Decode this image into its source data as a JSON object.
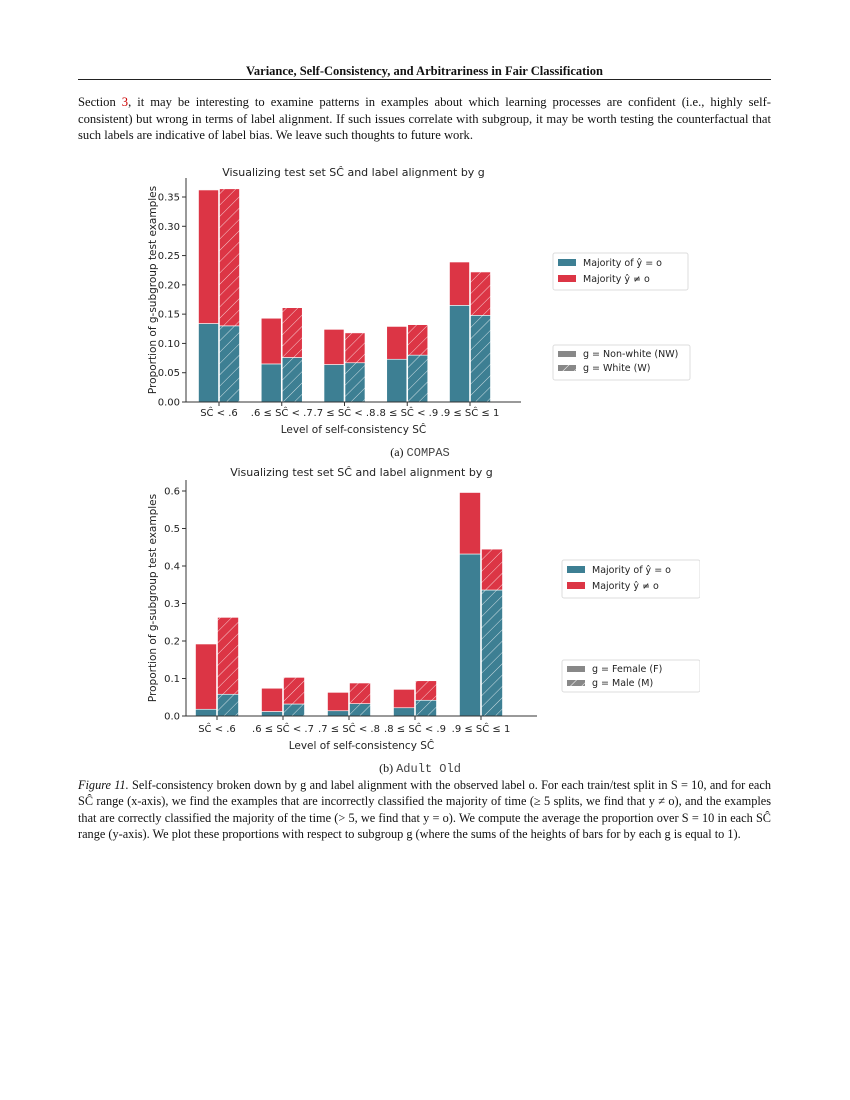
{
  "header": {
    "running_title": "Variance, Self-Consistency, and Arbitrariness in Fair Classification"
  },
  "body": {
    "pre": "Section ",
    "ref": "3",
    "post": ", it may be interesting to examine patterns in examples about which learning processes are confident (i.e., highly self-consistent) but wrong in terms of label alignment. If such issues correlate with subgroup, it may be worth testing the counterfactual that such labels are indicative of label bias. We leave such thoughts to future work."
  },
  "colors": {
    "majority_correct": "#3d7f93",
    "majority_incorrect": "#dc3545",
    "link": "#cc0000"
  },
  "chart_data": [
    {
      "type": "bar",
      "stacked": true,
      "title": "Visualizing test set SĈ and label alignment by g",
      "xlabel": "Level of self-consistency SĈ",
      "ylabel": "Proportion of g-subgroup test examples",
      "categories": [
        "SĈ < .6",
        ".6 ≤ SĈ < .7",
        ".7 ≤ SĈ < .8",
        ".8 ≤ SĈ < .9",
        ".9 ≤ SĈ ≤ 1"
      ],
      "yticks": [
        "0.00",
        "0.05",
        "0.10",
        "0.15",
        "0.20",
        "0.25",
        "0.30",
        "0.35"
      ],
      "ylim": [
        0,
        0.38
      ],
      "legend_stack": [
        "Majority of ŷ = o",
        "Majority ŷ ≠ o"
      ],
      "legend_groups": [
        "g =  Non-white (NW)",
        "g =  White (W)"
      ],
      "legend_placement": "right",
      "groups": [
        {
          "name": "Non-white (NW)",
          "hatched": false,
          "majority_correct": [
            0.134,
            0.065,
            0.064,
            0.073,
            0.165
          ],
          "majority_incorrect": [
            0.228,
            0.078,
            0.06,
            0.056,
            0.074
          ]
        },
        {
          "name": "White (W)",
          "hatched": true,
          "majority_correct": [
            0.13,
            0.076,
            0.067,
            0.08,
            0.148
          ],
          "majority_incorrect": [
            0.234,
            0.085,
            0.051,
            0.052,
            0.074
          ]
        }
      ],
      "caption_label": "(a) ",
      "caption_dataset": "COMPAS"
    },
    {
      "type": "bar",
      "stacked": true,
      "title": "Visualizing test set SĈ and label alignment by g",
      "xlabel": "Level of self-consistency SĈ",
      "ylabel": "Proportion of g-subgroup test examples",
      "categories": [
        "SĈ < .6",
        ".6 ≤ SĈ < .7",
        ".7 ≤ SĈ < .8",
        ".8 ≤ SĈ < .9",
        ".9 ≤ SĈ ≤ 1"
      ],
      "yticks": [
        "0.0",
        "0.1",
        "0.2",
        "0.3",
        "0.4",
        "0.5",
        "0.6"
      ],
      "ylim": [
        0,
        0.63
      ],
      "legend_stack": [
        "Majority of ŷ = o",
        "Majority ŷ ≠ o"
      ],
      "legend_groups": [
        "g =  Female (F)",
        "g =  Male (M)"
      ],
      "legend_placement": "right",
      "groups": [
        {
          "name": "Female (F)",
          "hatched": false,
          "majority_correct": [
            0.018,
            0.012,
            0.014,
            0.022,
            0.432
          ],
          "majority_incorrect": [
            0.174,
            0.062,
            0.049,
            0.049,
            0.164
          ]
        },
        {
          "name": "Male (M)",
          "hatched": true,
          "majority_correct": [
            0.058,
            0.032,
            0.033,
            0.042,
            0.336
          ],
          "majority_incorrect": [
            0.205,
            0.071,
            0.055,
            0.052,
            0.109
          ]
        }
      ],
      "caption_label": "(b) ",
      "caption_dataset": "Adult Old"
    }
  ],
  "figure_caption": {
    "label": "Figure 11.",
    "text": " Self-consistency broken down by g and label alignment with the observed label o. For each train/test split in S = 10, and for each SĈ range (x-axis), we find the examples that are incorrectly classified the majority of time (≥ 5 splits, we find that y ≠ o), and the examples that are correctly classified the majority of the time (> 5, we find that y = o). We compute the average the proportion over S = 10 in each SĈ range (y-axis). We plot these proportions with respect to subgroup g (where the sums of the heights of bars for by each g is equal to 1)."
  }
}
